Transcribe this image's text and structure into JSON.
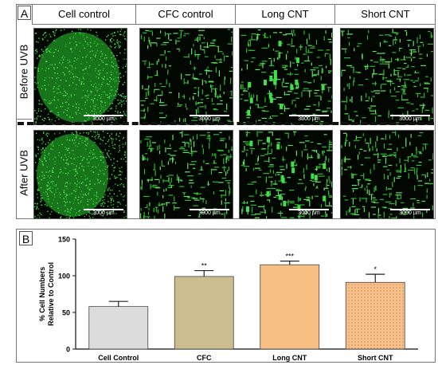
{
  "panel_a": {
    "letter": "A",
    "columns": [
      "Cell control",
      "CFC control",
      "Long CNT",
      "Short CNT"
    ],
    "rows": [
      "Before UVB",
      "After UVB"
    ],
    "scale_label": "3000 µm"
  },
  "panel_b": {
    "letter": "B"
  },
  "chart_data": {
    "type": "bar",
    "categories": [
      "Cell Control",
      "CFC",
      "Long CNT",
      "Short CNT"
    ],
    "values": [
      58,
      99,
      115,
      91
    ],
    "errors": [
      7,
      8,
      5,
      11
    ],
    "significance": [
      "",
      "**",
      "***",
      "*"
    ],
    "ylabel": "% Cell Numbers\nRelative to Control",
    "xlabel": "",
    "ylim": [
      0,
      150
    ],
    "yticks": [
      0,
      50,
      100,
      150
    ],
    "colors": [
      "#dcdcdc",
      "#cbbd8f",
      "#f8bf85",
      "#f7c08a"
    ],
    "patterns": [
      "none",
      "none",
      "none",
      "dots"
    ],
    "grid": false,
    "error_bar_color": "#222222"
  }
}
